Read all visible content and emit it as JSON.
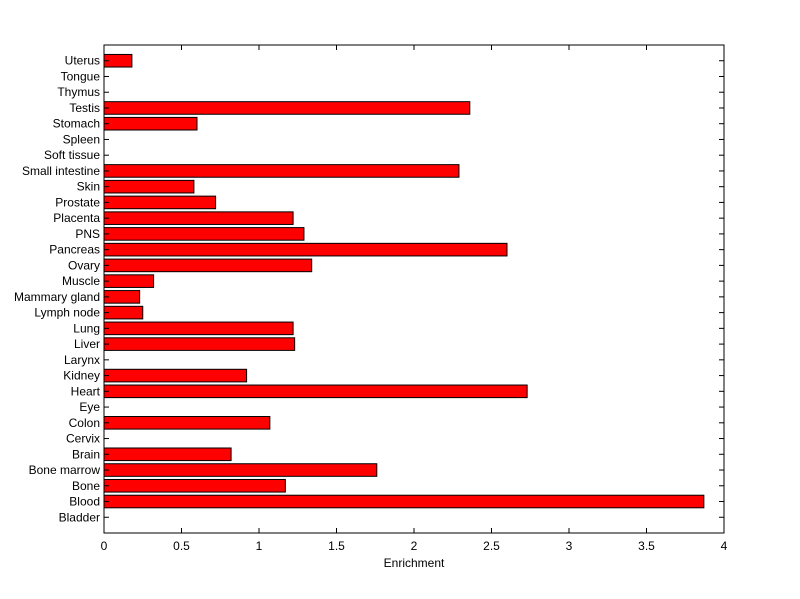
{
  "chart_data": {
    "type": "bar",
    "orientation": "horizontal",
    "title": "",
    "xlabel": "Enrichment",
    "ylabel": "",
    "xlim": [
      0,
      4
    ],
    "xticks": [
      0,
      0.5,
      1,
      1.5,
      2,
      2.5,
      3,
      3.5,
      4
    ],
    "xtick_labels": [
      "0",
      "0.5",
      "1",
      "1.5",
      "2",
      "2.5",
      "3",
      "3.5",
      "4"
    ],
    "grid": false,
    "bar_color": "#ff0000",
    "bar_edge_color": "#000000",
    "categories": [
      "Bladder",
      "Blood",
      "Bone",
      "Bone marrow",
      "Brain",
      "Cervix",
      "Colon",
      "Eye",
      "Heart",
      "Kidney",
      "Larynx",
      "Liver",
      "Lung",
      "Lymph node",
      "Mammary gland",
      "Muscle",
      "Ovary",
      "Pancreas",
      "PNS",
      "Placenta",
      "Prostate",
      "Skin",
      "Small intestine",
      "Soft tissue",
      "Spleen",
      "Stomach",
      "Testis",
      "Thymus",
      "Tongue",
      "Uterus"
    ],
    "values": [
      0,
      3.87,
      1.17,
      1.76,
      0.82,
      0,
      1.07,
      0,
      2.73,
      0.92,
      0,
      1.23,
      1.22,
      0.25,
      0.23,
      0.32,
      1.34,
      2.6,
      1.29,
      1.22,
      0.72,
      0.58,
      2.29,
      0,
      0,
      0.6,
      2.36,
      0,
      0,
      0.18
    ]
  }
}
